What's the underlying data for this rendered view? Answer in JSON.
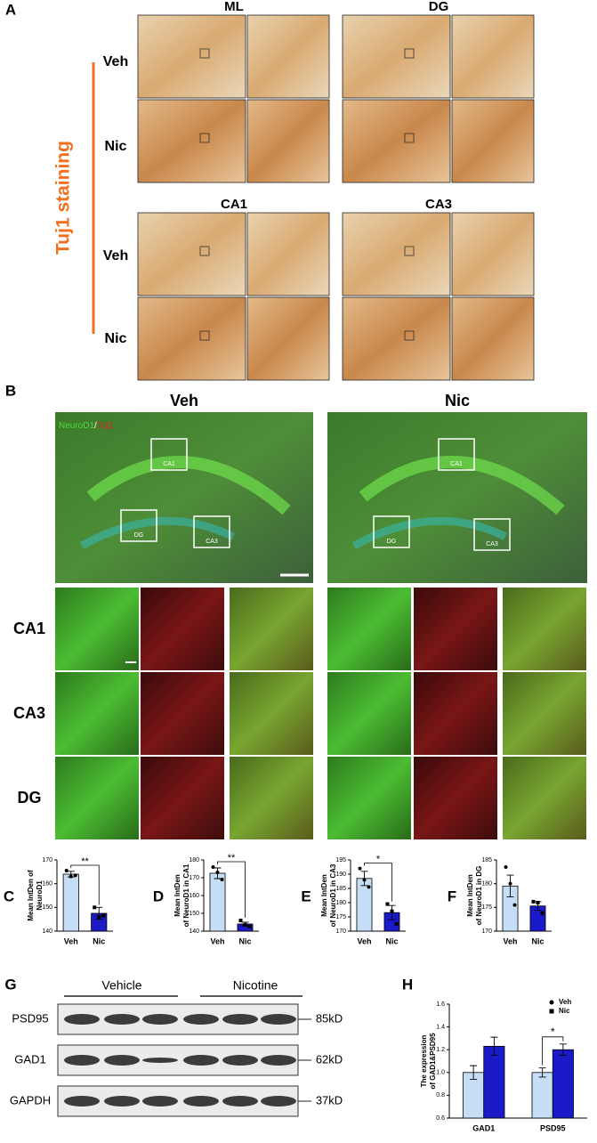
{
  "panel_a": {
    "label": "A",
    "side_label": "Tuj1 staining",
    "regions": [
      "ML",
      "DG",
      "CA1",
      "CA3"
    ],
    "rows": [
      "Veh",
      "Nic",
      "Veh",
      "Nic"
    ]
  },
  "panel_b": {
    "label": "B",
    "columns": [
      "Veh",
      "Nic"
    ],
    "stain_green": "NeuroD1",
    "stain_sep": "/",
    "stain_red": "Tuj1",
    "boxes": [
      "CA1",
      "DG",
      "CA3"
    ],
    "rows": [
      "CA1",
      "CA3",
      "DG"
    ]
  },
  "panel_g": {
    "label": "G",
    "groups": [
      "Vehicle",
      "Nicotine"
    ],
    "proteins": [
      "PSD95",
      "GAD1",
      "GAPDH"
    ],
    "sizes": [
      "85kD",
      "62kD",
      "37kD"
    ]
  },
  "chart_data": [
    {
      "type": "bar",
      "label": "C",
      "y_label": [
        "Mean IntDen of",
        "NeuroD1"
      ],
      "categories": [
        "Veh",
        "Nic"
      ],
      "values": [
        164,
        147.5
      ],
      "errors": [
        1.2,
        2.5
      ],
      "points": [
        [
          165.5,
          163,
          163.5
        ],
        [
          150,
          146,
          146.5
        ]
      ],
      "colors": [
        "#c5ddf5",
        "#1a1ac8"
      ],
      "ylim": [
        140,
        170
      ],
      "yticks": [
        140,
        150,
        160,
        170
      ],
      "significance": "**"
    },
    {
      "type": "bar",
      "label": "D",
      "y_label": [
        "Mean IntDen",
        "of NeuroD1 in CA1"
      ],
      "categories": [
        "Veh",
        "Nic"
      ],
      "values": [
        172.5,
        144
      ],
      "errors": [
        3,
        1
      ],
      "points": [
        [
          176,
          173,
          169
        ],
        [
          146,
          143.5,
          142.5
        ]
      ],
      "colors": [
        "#c5ddf5",
        "#1a1ac8"
      ],
      "ylim": [
        140,
        180
      ],
      "yticks": [
        140,
        150,
        160,
        170,
        180
      ],
      "significance": "**"
    },
    {
      "type": "bar",
      "label": "E",
      "y_label": [
        "Mean IntDen",
        "of NeuroD1 in CA3"
      ],
      "categories": [
        "Veh",
        "Nic"
      ],
      "values": [
        188.5,
        176.5
      ],
      "errors": [
        2.5,
        2.5
      ],
      "points": [
        [
          192,
          188,
          185.5
        ],
        [
          179.5,
          177,
          172.5
        ]
      ],
      "colors": [
        "#c5ddf5",
        "#1a1ac8"
      ],
      "ylim": [
        170,
        195
      ],
      "yticks": [
        170,
        175,
        180,
        185,
        190,
        195
      ],
      "significance": "*"
    },
    {
      "type": "bar",
      "label": "F",
      "y_label": [
        "Mean IntDen",
        "of NeuroD1 in DG"
      ],
      "categories": [
        "Veh",
        "Nic"
      ],
      "values": [
        179.5,
        175.3
      ],
      "errors": [
        2.3,
        0.9
      ],
      "points": [
        [
          183.5,
          180,
          175.5
        ],
        [
          176.2,
          176,
          173.8
        ]
      ],
      "colors": [
        "#c5ddf5",
        "#1a1ac8"
      ],
      "ylim": [
        170,
        185
      ],
      "yticks": [
        170,
        175,
        180,
        185
      ],
      "significance": ""
    },
    {
      "type": "grouped_bar",
      "label": "H",
      "y_label": [
        "The expression",
        "of GAD1&PSD95"
      ],
      "categories": [
        "GAD1",
        "PSD95"
      ],
      "series": [
        {
          "name": "Veh",
          "color": "#c5ddf5",
          "values": [
            1,
            1
          ],
          "errors": [
            0.06,
            0.04
          ]
        },
        {
          "name": "Nic",
          "color": "#1a1ac8",
          "values": [
            1.23,
            1.2
          ],
          "errors": [
            0.08,
            0.05
          ]
        }
      ],
      "ylim": [
        0.6,
        1.6
      ],
      "yticks": [
        0.6,
        0.8,
        {
          "value": 1,
          "label": "1.0"
        },
        1.2,
        1.4,
        1.6
      ],
      "significance": "*"
    }
  ]
}
